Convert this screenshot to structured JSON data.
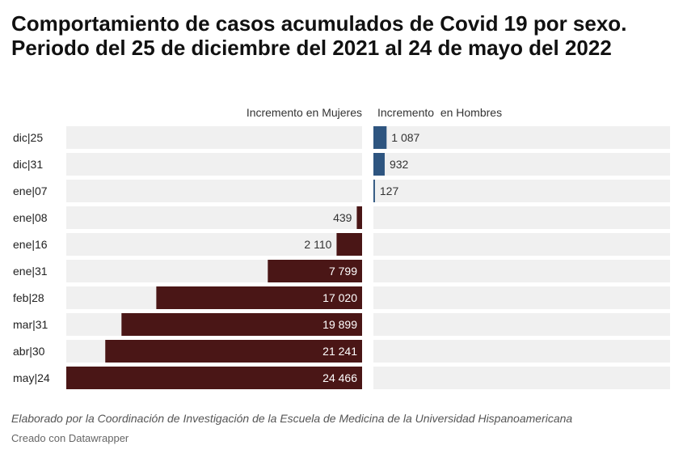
{
  "chart_data": {
    "type": "bar",
    "title": "Comportamiento de casos acumulados de Covid 19 por sexo. Periodo del 25 de diciembre del 2021 al 24 de mayo del 2022",
    "categories": [
      "dic|25",
      "dic|31",
      "ene|07",
      "ene|08",
      "ene|16",
      "ene|31",
      "feb|28",
      "mar|31",
      "abr|30",
      "may|24"
    ],
    "series": [
      {
        "name": "Incremento en Mujeres",
        "values": [
          null,
          null,
          null,
          439,
          2110,
          7799,
          17020,
          19899,
          21241,
          24466
        ],
        "labels": [
          "",
          "",
          "",
          "439",
          "2 110",
          "7 799",
          "17 020",
          "19 899",
          "21 241",
          "24 466"
        ],
        "color": "#4a1616"
      },
      {
        "name": "Incremento  en Hombres",
        "values": [
          1087,
          932,
          127,
          null,
          null,
          null,
          null,
          null,
          null,
          null
        ],
        "labels": [
          "1 087",
          "932",
          "127",
          "",
          "",
          "",
          "",
          "",
          "",
          ""
        ],
        "color": "#2e5580"
      }
    ],
    "xlim": [
      0,
      24466
    ],
    "legend": "column headers above each panel",
    "grid": false,
    "colors": {
      "track": "#f0f0f0",
      "label_on_bar": "#ffffff",
      "label_off_bar": "#333333"
    }
  },
  "notes": "Elaborado por la Coordinación de Investigación de la Escuela de Medicina de la Universidad Hispanoamericana",
  "credit": "Creado con Datawrapper"
}
